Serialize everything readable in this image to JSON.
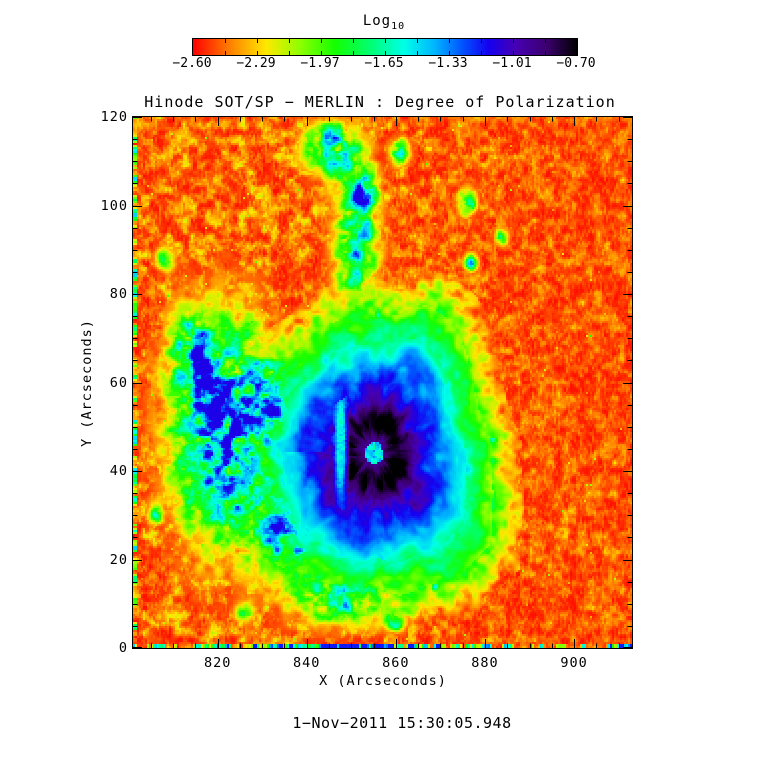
{
  "page": {
    "background": "#ffffff"
  },
  "colorbar": {
    "title_text": "Log",
    "title_sub": "10",
    "tick_labels": [
      "−2.60",
      "−2.29",
      "−1.97",
      "−1.65",
      "−1.33",
      "−1.01",
      "−0.70"
    ],
    "segments": 12
  },
  "chart": {
    "title": "Hinode SOT/SP − MERLIN : Degree of Polarization",
    "xlabel": "X (Arcseconds)",
    "ylabel": "Y (Arcseconds)"
  },
  "footer": {
    "timestamp": "1−Nov−2011 15:30:05.948"
  },
  "chart_data": {
    "type": "heatmap",
    "title": "Hinode SOT/SP - MERLIN : Degree of Polarization",
    "xlabel": "X (Arcseconds)",
    "ylabel": "Y (Arcseconds)",
    "x_range": [
      801,
      913
    ],
    "y_range": [
      0,
      120
    ],
    "x_major_ticks": [
      820,
      840,
      860,
      880,
      900
    ],
    "y_major_ticks": [
      0,
      20,
      40,
      60,
      80,
      100,
      120
    ],
    "minor_tick_step": 5,
    "grid": false,
    "colorbar": {
      "label": "Log10",
      "position": "top",
      "min": -2.6,
      "max": -0.7,
      "tick_values": [
        -2.6,
        -2.29,
        -1.97,
        -1.65,
        -1.33,
        -1.01,
        -0.7
      ]
    },
    "colormap_stops": [
      {
        "t": 0.0,
        "c": "#ff0000"
      },
      {
        "t": 0.1,
        "c": "#ff8400"
      },
      {
        "t": 0.19,
        "c": "#ffe800"
      },
      {
        "t": 0.28,
        "c": "#8cff00"
      },
      {
        "t": 0.37,
        "c": "#14ff00"
      },
      {
        "t": 0.47,
        "c": "#00ff7d"
      },
      {
        "t": 0.55,
        "c": "#00ffe8"
      },
      {
        "t": 0.63,
        "c": "#00b4ff"
      },
      {
        "t": 0.7,
        "c": "#0055ff"
      },
      {
        "t": 0.77,
        "c": "#1500f0"
      },
      {
        "t": 0.84,
        "c": "#4600b4"
      },
      {
        "t": 0.92,
        "c": "#3c0070"
      },
      {
        "t": 1.0,
        "c": "#000000"
      }
    ],
    "features": {
      "background_log10": -2.55,
      "umbra_log10": -0.75,
      "penumbra_log10": -1.3,
      "sunspot": {
        "center_x": 855,
        "center_y": 44,
        "elongation_y": 1.22,
        "umbra_radius": 9,
        "penumbra_radius": 17,
        "canopy_radius": 27,
        "light_bridge_x": 847.5,
        "light_bridge_y": 46
      },
      "plage_blobs": [
        {
          "x": 821,
          "y": 49,
          "sx": 11,
          "sy": 24,
          "a": 0.85
        },
        {
          "x": 814,
          "y": 67,
          "sx": 5,
          "sy": 8,
          "a": 0.5
        },
        {
          "x": 836,
          "y": 26,
          "sx": 8,
          "sy": 9,
          "a": 0.6
        },
        {
          "x": 848,
          "y": 11,
          "sx": 12,
          "sy": 6,
          "a": 0.55
        },
        {
          "x": 851,
          "y": 93,
          "sx": 5,
          "sy": 16,
          "a": 0.6
        },
        {
          "x": 845,
          "y": 113,
          "sx": 6,
          "sy": 6,
          "a": 0.6
        },
        {
          "x": 833,
          "y": 55,
          "sx": 6,
          "sy": 10,
          "a": 0.45
        },
        {
          "x": 853,
          "y": 103,
          "sx": 2.5,
          "sy": 4,
          "a": 0.55
        },
        {
          "x": 876,
          "y": 101,
          "sx": 2,
          "sy": 3,
          "a": 0.65
        },
        {
          "x": 877,
          "y": 87,
          "sx": 1.6,
          "sy": 2.2,
          "a": 0.55
        },
        {
          "x": 872,
          "y": 31,
          "sx": 1.8,
          "sy": 1.8,
          "a": 0.5
        },
        {
          "x": 882,
          "y": 47,
          "sx": 1.3,
          "sy": 1.3,
          "a": 0.45
        },
        {
          "x": 861,
          "y": 112,
          "sx": 2,
          "sy": 3,
          "a": 0.6
        },
        {
          "x": 856,
          "y": 74,
          "sx": 1.6,
          "sy": 3.5,
          "a": 0.5
        },
        {
          "x": 866,
          "y": 62,
          "sx": 1.5,
          "sy": 2,
          "a": 0.45
        },
        {
          "x": 808,
          "y": 88,
          "sx": 2,
          "sy": 2.5,
          "a": 0.5
        },
        {
          "x": 806,
          "y": 30,
          "sx": 1.6,
          "sy": 2,
          "a": 0.45
        },
        {
          "x": 826,
          "y": 8,
          "sx": 2,
          "sy": 2,
          "a": 0.45
        },
        {
          "x": 860,
          "y": 6,
          "sx": 2,
          "sy": 2,
          "a": 0.5
        },
        {
          "x": 869,
          "y": 14,
          "sx": 1.6,
          "sy": 1.6,
          "a": 0.42
        },
        {
          "x": 884,
          "y": 93,
          "sx": 1.6,
          "sy": 2,
          "a": 0.5
        }
      ]
    },
    "timestamp": "1-Nov-2011 15:30:05.948"
  }
}
